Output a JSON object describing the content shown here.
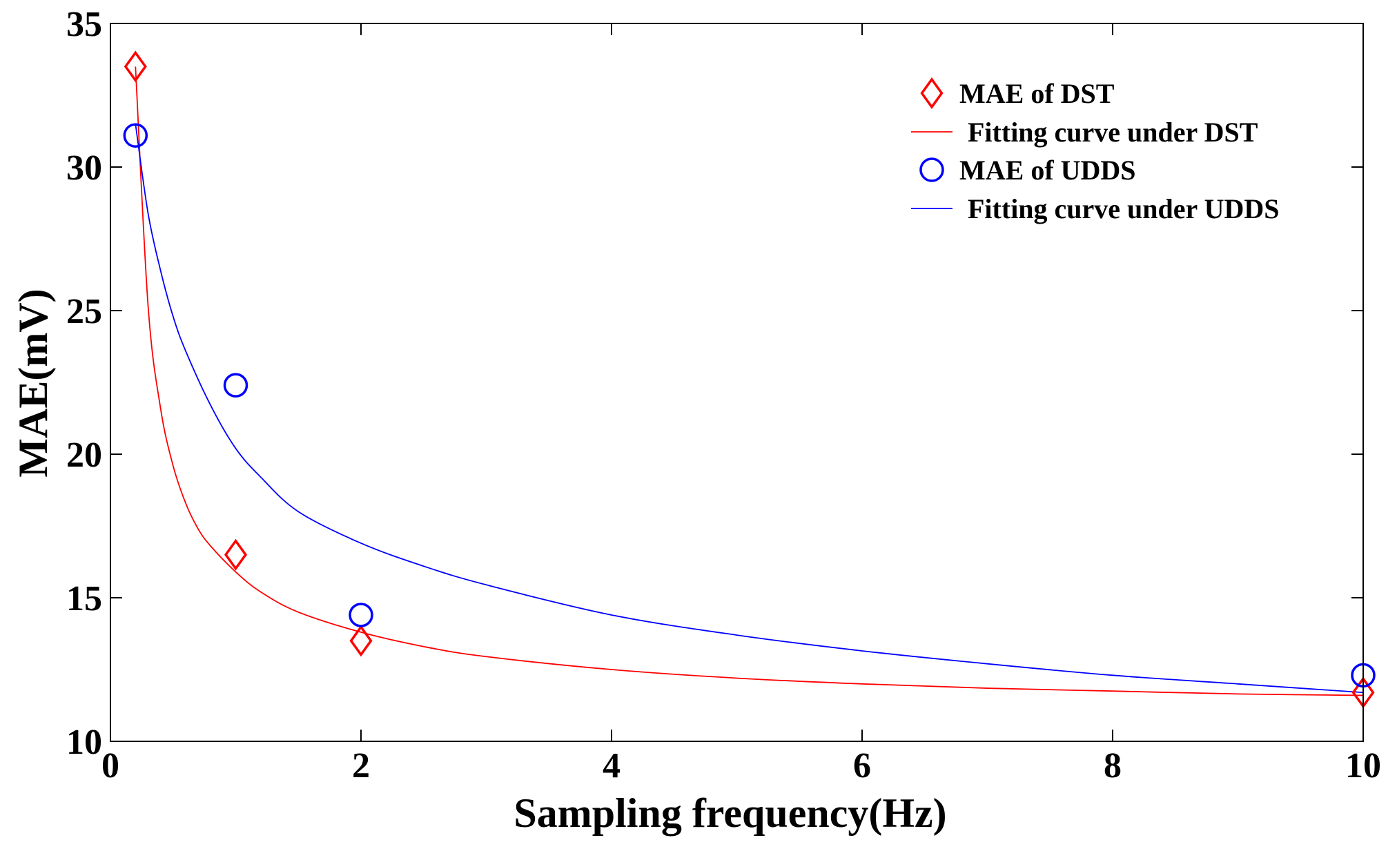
{
  "chart_data": {
    "type": "scatter",
    "title": "",
    "xlabel": "Sampling frequency(Hz)",
    "ylabel": "MAE(mV)",
    "xlim": [
      0,
      10
    ],
    "ylim": [
      10,
      35
    ],
    "xticks": [
      0,
      2,
      4,
      6,
      8,
      10
    ],
    "xtick_labels": [
      "0",
      "2",
      "4",
      "6",
      "8",
      "10"
    ],
    "yticks": [
      10,
      15,
      20,
      25,
      30,
      35
    ],
    "ytick_labels": [
      "10",
      "15",
      "20",
      "25",
      "30",
      "35"
    ],
    "grid": false,
    "legend_position": "top-right",
    "series": [
      {
        "name": "MAE of DST",
        "kind": "markers",
        "marker": "diamond",
        "color": "#ff0000",
        "x": [
          0.2,
          1,
          2,
          10
        ],
        "y": [
          33.5,
          16.5,
          13.5,
          11.7
        ]
      },
      {
        "name": "Fitting curve under DST",
        "kind": "line",
        "color": "#ff0000",
        "x": [
          0.2,
          0.3,
          0.4,
          0.5,
          0.6,
          0.7,
          0.8,
          1,
          1.2,
          1.5,
          2,
          2.5,
          3,
          4,
          5,
          6,
          7,
          8,
          9,
          10
        ],
        "y": [
          33.5,
          25.2,
          21.6,
          19.6,
          18.3,
          17.4,
          16.8,
          15.9,
          15.2,
          14.5,
          13.8,
          13.3,
          12.95,
          12.5,
          12.2,
          12.0,
          11.85,
          11.75,
          11.65,
          11.6
        ]
      },
      {
        "name": "MAE of UDDS",
        "kind": "markers",
        "marker": "circle",
        "color": "#0000ff",
        "x": [
          0.2,
          1,
          2,
          10
        ],
        "y": [
          31.1,
          22.4,
          14.4,
          12.3
        ]
      },
      {
        "name": "Fitting curve under UDDS",
        "kind": "line",
        "color": "#0000ff",
        "x": [
          0.2,
          0.3,
          0.4,
          0.5,
          0.6,
          0.8,
          1,
          1.2,
          1.5,
          2,
          2.5,
          3,
          4,
          5,
          6,
          7,
          8,
          9,
          10
        ],
        "y": [
          31.5,
          28.4,
          26.4,
          24.8,
          23.6,
          21.7,
          20.2,
          19.2,
          18.0,
          16.9,
          16.1,
          15.45,
          14.4,
          13.7,
          13.15,
          12.7,
          12.3,
          12.0,
          11.7
        ]
      }
    ]
  }
}
